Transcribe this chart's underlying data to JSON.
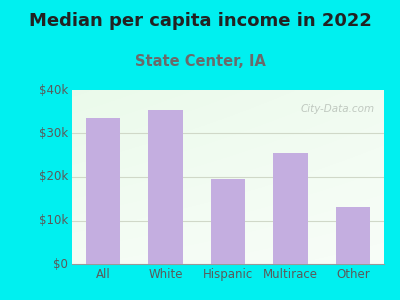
{
  "title": "Median per capita income in 2022",
  "subtitle": "State Center, IA",
  "categories": [
    "All",
    "White",
    "Hispanic",
    "Multirace",
    "Other"
  ],
  "values": [
    33500,
    35500,
    19500,
    25500,
    13000
  ],
  "bar_color": "#c4aee0",
  "title_fontsize": 13,
  "subtitle_fontsize": 10.5,
  "subtitle_color": "#6a6a6a",
  "title_color": "#222222",
  "tick_color": "#5a5a5a",
  "ytick_label_color": "#5a5a5a",
  "xtick_label_color": "#5a5a5a",
  "ylim": [
    0,
    40000
  ],
  "yticks": [
    0,
    10000,
    20000,
    30000,
    40000
  ],
  "ytick_labels": [
    "$0",
    "$10k",
    "$20k",
    "$30k",
    "$40k"
  ],
  "bg_color": "#00f0f0",
  "plot_bg_color_topleft": "#e8f5e0",
  "plot_bg_color_topright": "#f5faf0",
  "plot_bg_color_bottom": "#ffffff",
  "grid_color": "#d0d8c8",
  "watermark": "City-Data.com"
}
